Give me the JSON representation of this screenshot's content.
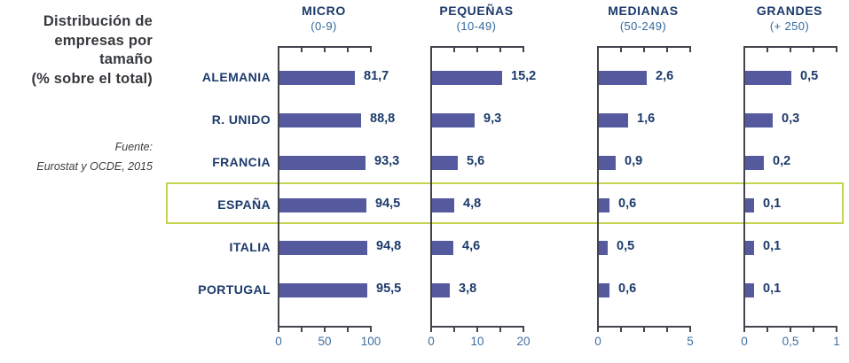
{
  "sidebar": {
    "title_lines": [
      "Distribución de",
      "empresas por",
      "tamaño",
      "(% sobre el total)"
    ],
    "source_lines": [
      "Fuente:",
      "Eurostat y OCDE, 2015"
    ]
  },
  "chart_data": {
    "type": "bar",
    "orientation": "horizontal",
    "title": "Distribución de empresas por tamaño (% sobre el total)",
    "source": "Fuente: Eurostat y OCDE, 2015",
    "categories": [
      "ALEMANIA",
      "R. UNIDO",
      "FRANCIA",
      "ESPAÑA",
      "ITALIA",
      "PORTUGAL"
    ],
    "highlighted_category": "ESPAÑA",
    "grid": false,
    "legend": false,
    "panels": [
      {
        "title": "MICRO",
        "subtitle": "(0-9)",
        "xlim": [
          0,
          100
        ],
        "ticks": [
          {
            "pos": 0,
            "label": "0"
          },
          {
            "pos": 0.5,
            "label": "50"
          },
          {
            "pos": 1,
            "label": "100"
          }
        ],
        "values": [
          81.7,
          88.8,
          93.3,
          94.5,
          94.8,
          95.5
        ],
        "value_labels": [
          "81,7",
          "88,8",
          "93,3",
          "94,5",
          "94,8",
          "95,5"
        ]
      },
      {
        "title": "PEQUEÑAS",
        "subtitle": "(10-49)",
        "xlim": [
          0,
          20
        ],
        "ticks": [
          {
            "pos": 0,
            "label": "0"
          },
          {
            "pos": 0.5,
            "label": "10"
          },
          {
            "pos": 1,
            "label": "20"
          }
        ],
        "values": [
          15.2,
          9.3,
          5.6,
          4.8,
          4.6,
          3.8
        ],
        "value_labels": [
          "15,2",
          "9,3",
          "5,6",
          "4,8",
          "4,6",
          "3,8"
        ]
      },
      {
        "title": "MEDIANAS",
        "subtitle": "(50-249)",
        "xlim": [
          0,
          5
        ],
        "ticks": [
          {
            "pos": 0,
            "label": "0"
          },
          {
            "pos": 1,
            "label": "5"
          }
        ],
        "values": [
          2.6,
          1.6,
          0.9,
          0.6,
          0.5,
          0.6
        ],
        "value_labels": [
          "2,6",
          "1,6",
          "0,9",
          "0,6",
          "0,5",
          "0,6"
        ]
      },
      {
        "title": "GRANDES",
        "subtitle": "(+ 250)",
        "xlim": [
          0,
          1
        ],
        "ticks": [
          {
            "pos": 0,
            "label": "0"
          },
          {
            "pos": 0.5,
            "label": "0,5"
          },
          {
            "pos": 1,
            "label": "1"
          }
        ],
        "values": [
          0.5,
          0.3,
          0.2,
          0.1,
          0.1,
          0.1
        ],
        "value_labels": [
          "0,5",
          "0,3",
          "0,2",
          "0,1",
          "0,1",
          "0,1"
        ]
      }
    ],
    "colors": {
      "bar": "#555a9e",
      "value_text": "#1c3a6b",
      "header_text": "#1c3a6b",
      "subtitle_text": "#33689c",
      "tick_label_text": "#3f6f9f",
      "axis_line": "#44444e",
      "highlight_border": "#c5d44f",
      "title_text": "#35383c"
    }
  }
}
